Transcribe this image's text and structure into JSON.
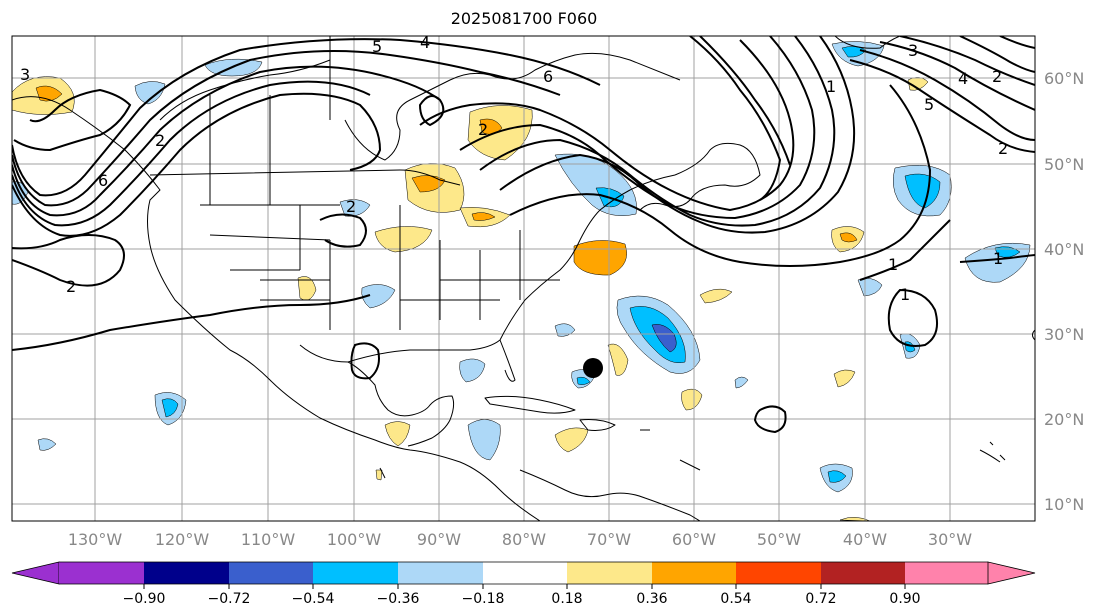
{
  "title": "2025081700 F060",
  "map": {
    "lon_labels": [
      "130°W",
      "120°W",
      "110°W",
      "100°W",
      "90°W",
      "80°W",
      "70°W",
      "60°W",
      "50°W",
      "40°W",
      "30°W"
    ],
    "lat_labels": [
      "60°N",
      "50°N",
      "40°N",
      "30°N",
      "20°N",
      "10°N"
    ],
    "gridline_color": "#a0a0a0",
    "coastline_color": "#000000",
    "contour_color": "#000000"
  },
  "contour_labels": [
    {
      "id": "c1",
      "text": "5"
    },
    {
      "id": "c2",
      "text": "4"
    },
    {
      "id": "c3",
      "text": "6"
    },
    {
      "id": "c4",
      "text": "2"
    },
    {
      "id": "c5",
      "text": "6"
    },
    {
      "id": "c6",
      "text": "2"
    },
    {
      "id": "c7",
      "text": "2"
    },
    {
      "id": "c8",
      "text": "3"
    },
    {
      "id": "c9",
      "text": "4"
    },
    {
      "id": "c10",
      "text": "5"
    },
    {
      "id": "c11",
      "text": "2"
    },
    {
      "id": "c12",
      "text": "1"
    },
    {
      "id": "c13",
      "text": "1"
    },
    {
      "id": "c14",
      "text": "2"
    },
    {
      "id": "c15",
      "text": "3"
    },
    {
      "id": "c16",
      "text": "2"
    },
    {
      "id": "c17",
      "text": "1"
    },
    {
      "id": "c18",
      "text": "1"
    }
  ],
  "colorbar": {
    "ticks": [
      "−0.90",
      "−0.72",
      "−0.54",
      "−0.36",
      "−0.18",
      "0.18",
      "0.36",
      "0.54",
      "0.72",
      "0.90"
    ],
    "colors": [
      "#9b30d0",
      "#00008b",
      "#3a5fcd",
      "#00bfff",
      "#add8f7",
      "#ffffff",
      "#fde88a",
      "#ffa500",
      "#ff4500",
      "#b22222",
      "#ff82ab"
    ]
  },
  "marker": {
    "label": "storm center marker",
    "color": "#000000"
  }
}
